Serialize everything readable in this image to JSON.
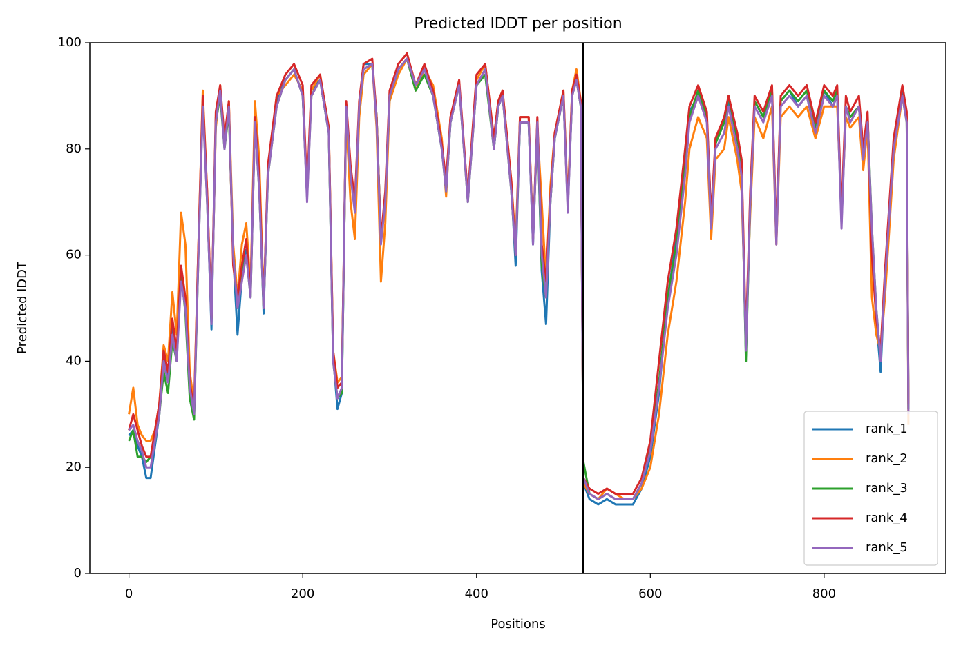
{
  "chart_data": {
    "type": "line",
    "title": "Predicted lDDT per position",
    "x_label": "Positions",
    "y_label": "Predicted lDDT",
    "xlim": [
      -45,
      940
    ],
    "xticks": [
      0,
      200,
      400,
      600,
      800
    ],
    "ylim": [
      0,
      100
    ],
    "yticks": [
      0,
      20,
      40,
      60,
      80,
      100
    ],
    "grid": false,
    "legend": "lower right",
    "vline": {
      "x": 523,
      "color": "#000000"
    },
    "x": [
      0,
      5,
      10,
      15,
      20,
      25,
      30,
      35,
      40,
      45,
      50,
      55,
      60,
      65,
      70,
      75,
      80,
      85,
      90,
      95,
      100,
      105,
      110,
      115,
      120,
      125,
      130,
      135,
      140,
      145,
      150,
      155,
      160,
      170,
      180,
      190,
      200,
      205,
      210,
      220,
      230,
      235,
      240,
      245,
      250,
      255,
      260,
      265,
      270,
      280,
      285,
      290,
      295,
      300,
      310,
      320,
      330,
      340,
      350,
      360,
      365,
      370,
      380,
      390,
      400,
      410,
      420,
      425,
      430,
      440,
      445,
      450,
      460,
      465,
      470,
      475,
      480,
      485,
      490,
      500,
      505,
      510,
      515,
      520,
      523,
      530,
      540,
      550,
      560,
      570,
      580,
      590,
      600,
      610,
      620,
      630,
      640,
      645,
      655,
      665,
      670,
      675,
      685,
      690,
      700,
      705,
      710,
      715,
      720,
      730,
      740,
      745,
      750,
      760,
      770,
      780,
      790,
      800,
      810,
      815,
      820,
      825,
      830,
      840,
      845,
      850,
      855,
      860,
      865,
      870,
      880,
      890,
      895,
      897
    ],
    "series": [
      {
        "name": "rank_1",
        "color": "#1f77b4",
        "values": [
          26,
          27,
          24,
          22,
          18,
          18,
          24,
          30,
          41,
          37,
          46,
          41,
          56,
          51,
          35,
          30,
          61,
          89,
          71,
          46,
          86,
          91,
          81,
          88,
          60,
          45,
          56,
          61,
          53,
          86,
          73,
          49,
          76,
          89,
          93,
          95,
          90,
          71,
          91,
          93,
          83,
          41,
          31,
          34,
          88,
          76,
          69,
          88,
          96,
          96,
          86,
          63,
          71,
          90,
          95,
          97,
          91,
          95,
          90,
          80,
          73,
          85,
          92,
          71,
          92,
          95,
          80,
          88,
          90,
          73,
          58,
          85,
          85,
          62,
          85,
          57,
          47,
          70,
          82,
          90,
          69,
          90,
          93,
          88,
          17,
          14,
          13,
          14,
          13,
          13,
          13,
          16,
          22,
          34,
          52,
          63,
          78,
          87,
          90,
          86,
          67,
          81,
          85,
          89,
          81,
          77,
          41,
          71,
          89,
          86,
          91,
          63,
          89,
          91,
          88,
          90,
          83,
          91,
          88,
          90,
          66,
          88,
          86,
          88,
          79,
          86,
          63,
          48,
          38,
          56,
          81,
          91,
          86,
          31
        ]
      },
      {
        "name": "rank_2",
        "color": "#ff7f0e",
        "values": [
          30,
          35,
          28,
          26,
          25,
          25,
          27,
          32,
          43,
          40,
          53,
          45,
          68,
          62,
          38,
          32,
          62,
          91,
          72,
          48,
          84,
          92,
          81,
          89,
          62,
          52,
          62,
          66,
          54,
          89,
          78,
          51,
          76,
          90,
          92,
          94,
          91,
          72,
          91,
          94,
          84,
          42,
          36,
          37,
          86,
          70,
          63,
          86,
          94,
          96,
          84,
          55,
          66,
          89,
          94,
          97,
          91,
          95,
          92,
          82,
          71,
          86,
          92,
          71,
          93,
          96,
          82,
          89,
          91,
          74,
          62,
          86,
          86,
          63,
          84,
          70,
          55,
          73,
          83,
          91,
          70,
          91,
          95,
          89,
          17,
          15,
          14,
          16,
          15,
          14,
          14,
          16,
          20,
          30,
          45,
          55,
          70,
          80,
          86,
          82,
          63,
          78,
          80,
          86,
          78,
          72,
          45,
          68,
          86,
          82,
          88,
          62,
          86,
          88,
          86,
          88,
          82,
          88,
          88,
          88,
          68,
          86,
          84,
          86,
          76,
          84,
          52,
          45,
          42,
          52,
          78,
          90,
          86,
          28
        ]
      },
      {
        "name": "rank_3",
        "color": "#2ca02c",
        "values": [
          25,
          27,
          22,
          22,
          21,
          22,
          25,
          30,
          38,
          34,
          44,
          40,
          57,
          49,
          33,
          29,
          60,
          89,
          70,
          48,
          85,
          90,
          80,
          87,
          60,
          50,
          56,
          60,
          52,
          85,
          72,
          50,
          75,
          88,
          93,
          95,
          90,
          71,
          90,
          93,
          83,
          40,
          33,
          34,
          88,
          76,
          69,
          88,
          95,
          96,
          86,
          63,
          71,
          90,
          95,
          97,
          91,
          94,
          90,
          80,
          72,
          85,
          92,
          70,
          92,
          94,
          80,
          88,
          90,
          72,
          60,
          85,
          85,
          63,
          85,
          58,
          52,
          70,
          82,
          90,
          69,
          90,
          93,
          88,
          21,
          15,
          14,
          15,
          14,
          14,
          14,
          17,
          24,
          36,
          52,
          62,
          77,
          86,
          91,
          86,
          66,
          81,
          85,
          90,
          82,
          77,
          40,
          70,
          89,
          86,
          91,
          63,
          89,
          91,
          89,
          91,
          84,
          91,
          89,
          91,
          67,
          88,
          86,
          88,
          79,
          86,
          65,
          50,
          40,
          56,
          81,
          90,
          85,
          31
        ]
      },
      {
        "name": "rank_4",
        "color": "#d62728",
        "values": [
          27,
          30,
          27,
          24,
          22,
          22,
          27,
          32,
          42,
          38,
          48,
          42,
          58,
          52,
          36,
          31,
          62,
          90,
          72,
          48,
          87,
          92,
          82,
          89,
          58,
          52,
          58,
          63,
          53,
          86,
          75,
          50,
          77,
          90,
          94,
          96,
          92,
          72,
          92,
          94,
          84,
          42,
          35,
          36,
          89,
          77,
          70,
          89,
          96,
          97,
          86,
          63,
          72,
          91,
          96,
          98,
          92,
          96,
          91,
          81,
          74,
          86,
          93,
          71,
          94,
          96,
          82,
          89,
          91,
          74,
          60,
          86,
          86,
          63,
          86,
          62,
          55,
          71,
          83,
          91,
          69,
          91,
          94,
          89,
          18,
          16,
          15,
          16,
          15,
          15,
          15,
          18,
          25,
          40,
          55,
          65,
          80,
          88,
          92,
          87,
          67,
          82,
          86,
          90,
          83,
          78,
          44,
          72,
          90,
          87,
          92,
          64,
          90,
          92,
          90,
          92,
          85,
          92,
          90,
          92,
          68,
          90,
          87,
          90,
          80,
          87,
          60,
          48,
          42,
          57,
          82,
          92,
          87,
          32
        ]
      },
      {
        "name": "rank_5",
        "color": "#9467bd",
        "values": [
          27,
          28,
          25,
          23,
          20,
          20,
          25,
          30,
          40,
          36,
          45,
          40,
          55,
          50,
          35,
          30,
          60,
          88,
          70,
          47,
          85,
          91,
          80,
          88,
          60,
          50,
          55,
          60,
          52,
          85,
          72,
          50,
          75,
          88,
          93,
          95,
          90,
          70,
          90,
          93,
          83,
          40,
          33,
          35,
          88,
          75,
          68,
          88,
          95,
          96,
          85,
          62,
          70,
          90,
          95,
          97,
          92,
          95,
          90,
          80,
          72,
          85,
          92,
          70,
          92,
          95,
          80,
          88,
          90,
          72,
          60,
          85,
          85,
          62,
          85,
          60,
          52,
          70,
          82,
          90,
          68,
          90,
          93,
          88,
          18,
          15,
          14,
          15,
          14,
          14,
          14,
          17,
          23,
          35,
          50,
          60,
          75,
          85,
          90,
          85,
          65,
          80,
          83,
          88,
          80,
          75,
          42,
          70,
          88,
          85,
          90,
          62,
          88,
          90,
          88,
          90,
          83,
          90,
          88,
          90,
          65,
          88,
          85,
          88,
          78,
          85,
          65,
          50,
          40,
          55,
          80,
          90,
          85,
          30
        ]
      }
    ]
  }
}
